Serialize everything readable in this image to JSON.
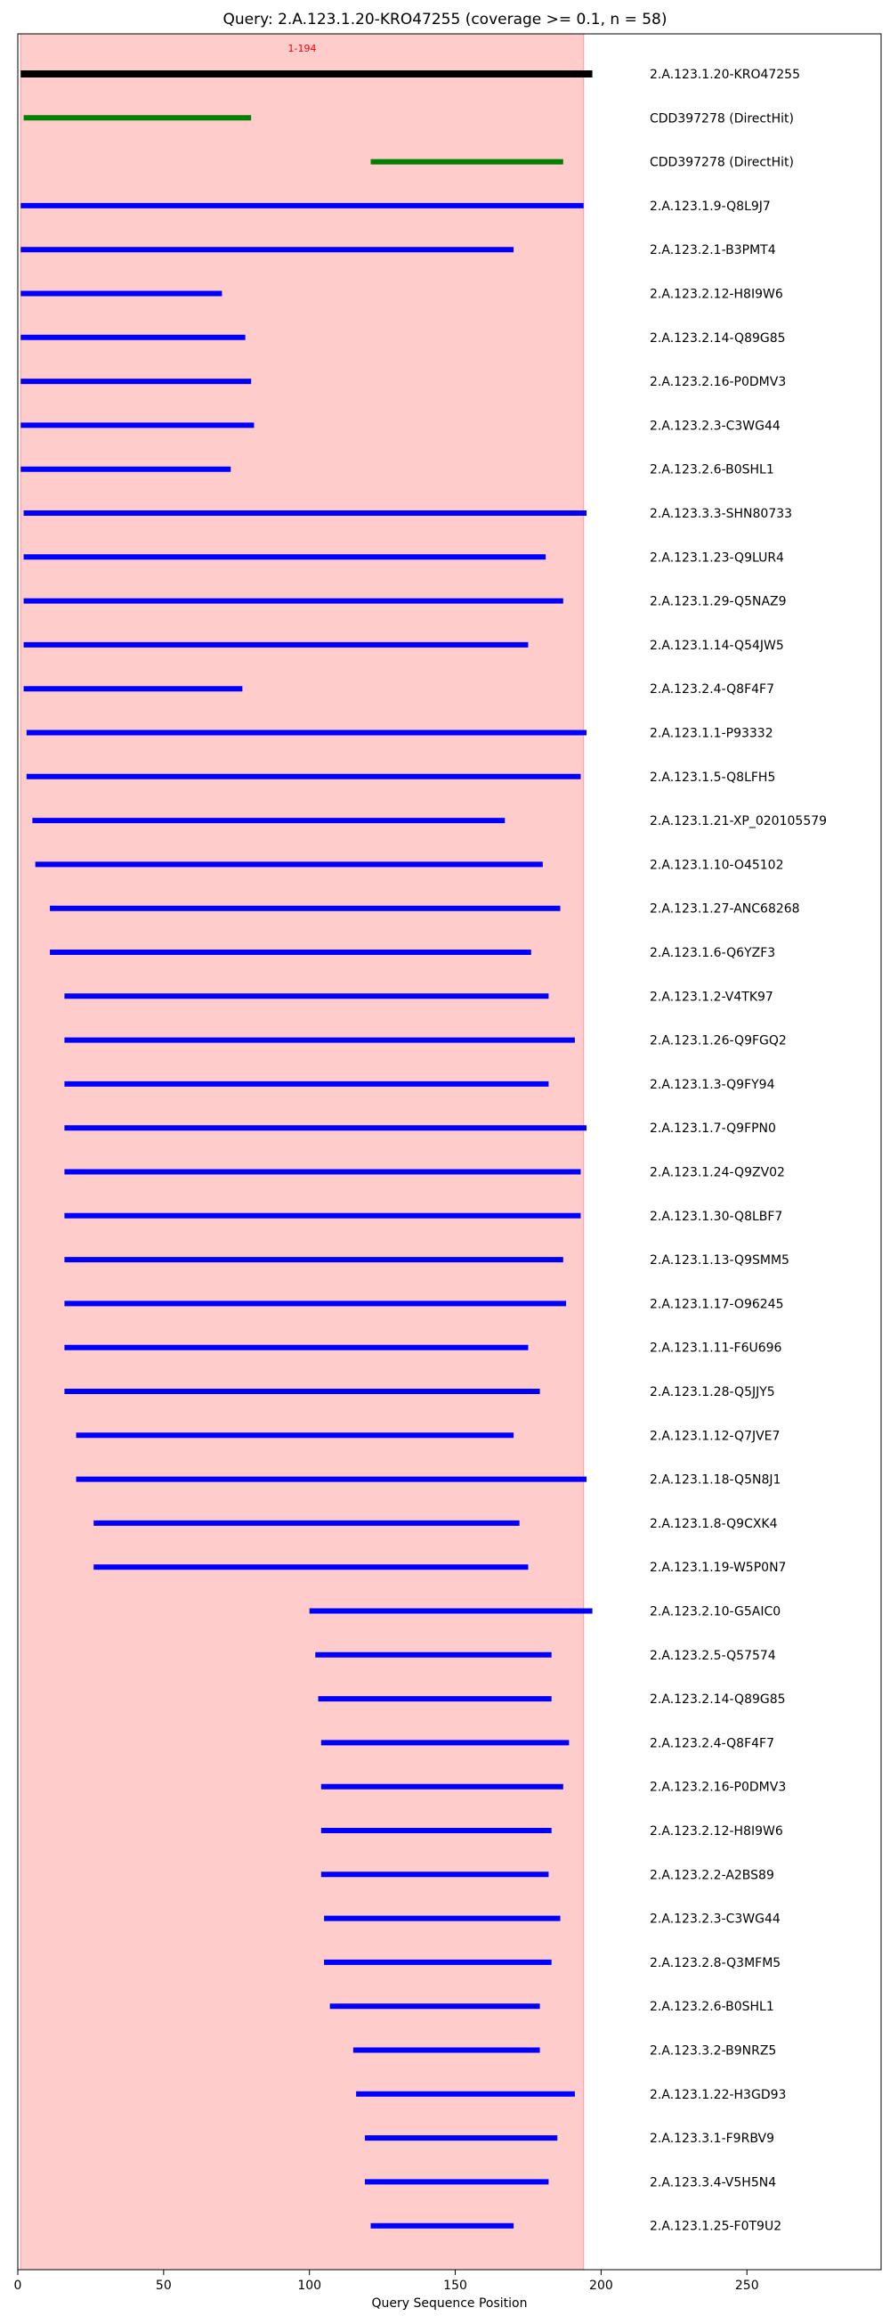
{
  "chart_data": {
    "type": "bar",
    "title": "Query: 2.A.123.1.20-KRO47255 (coverage >= 0.1, n = 58)",
    "xlabel": "Query Sequence Position",
    "xlim": [
      0,
      296
    ],
    "xticks": [
      0,
      50,
      100,
      150,
      200,
      250
    ],
    "highlight_region": {
      "start": 1,
      "end": 194,
      "label": "1-194",
      "color": "#ffcccc"
    },
    "bars": [
      {
        "label": "2.A.123.1.20-KRO47255",
        "start": 1,
        "end": 197,
        "color": "#000000"
      },
      {
        "label": "CDD397278 (DirectHit)",
        "start": 2,
        "end": 80,
        "color": "#008000"
      },
      {
        "label": "CDD397278 (DirectHit)",
        "start": 121,
        "end": 187,
        "color": "#008000"
      },
      {
        "label": "2.A.123.1.9-Q8L9J7",
        "start": 1,
        "end": 194,
        "color": "#0000ff"
      },
      {
        "label": "2.A.123.2.1-B3PMT4",
        "start": 1,
        "end": 170,
        "color": "#0000ff"
      },
      {
        "label": "2.A.123.2.12-H8I9W6",
        "start": 1,
        "end": 70,
        "color": "#0000ff"
      },
      {
        "label": "2.A.123.2.14-Q89G85",
        "start": 1,
        "end": 78,
        "color": "#0000ff"
      },
      {
        "label": "2.A.123.2.16-P0DMV3",
        "start": 1,
        "end": 80,
        "color": "#0000ff"
      },
      {
        "label": "2.A.123.2.3-C3WG44",
        "start": 1,
        "end": 81,
        "color": "#0000ff"
      },
      {
        "label": "2.A.123.2.6-B0SHL1",
        "start": 1,
        "end": 73,
        "color": "#0000ff"
      },
      {
        "label": "2.A.123.3.3-SHN80733",
        "start": 2,
        "end": 195,
        "color": "#0000ff"
      },
      {
        "label": "2.A.123.1.23-Q9LUR4",
        "start": 2,
        "end": 181,
        "color": "#0000ff"
      },
      {
        "label": "2.A.123.1.29-Q5NAZ9",
        "start": 2,
        "end": 187,
        "color": "#0000ff"
      },
      {
        "label": "2.A.123.1.14-Q54JW5",
        "start": 2,
        "end": 175,
        "color": "#0000ff"
      },
      {
        "label": "2.A.123.2.4-Q8F4F7",
        "start": 2,
        "end": 77,
        "color": "#0000ff"
      },
      {
        "label": "2.A.123.1.1-P93332",
        "start": 3,
        "end": 195,
        "color": "#0000ff"
      },
      {
        "label": "2.A.123.1.5-Q8LFH5",
        "start": 3,
        "end": 193,
        "color": "#0000ff"
      },
      {
        "label": "2.A.123.1.21-XP_020105579",
        "start": 5,
        "end": 167,
        "color": "#0000ff"
      },
      {
        "label": "2.A.123.1.10-O45102",
        "start": 6,
        "end": 180,
        "color": "#0000ff"
      },
      {
        "label": "2.A.123.1.27-ANC68268",
        "start": 11,
        "end": 186,
        "color": "#0000ff"
      },
      {
        "label": "2.A.123.1.6-Q6YZF3",
        "start": 11,
        "end": 176,
        "color": "#0000ff"
      },
      {
        "label": "2.A.123.1.2-V4TK97",
        "start": 16,
        "end": 182,
        "color": "#0000ff"
      },
      {
        "label": "2.A.123.1.26-Q9FGQ2",
        "start": 16,
        "end": 191,
        "color": "#0000ff"
      },
      {
        "label": "2.A.123.1.3-Q9FY94",
        "start": 16,
        "end": 182,
        "color": "#0000ff"
      },
      {
        "label": "2.A.123.1.7-Q9FPN0",
        "start": 16,
        "end": 195,
        "color": "#0000ff"
      },
      {
        "label": "2.A.123.1.24-Q9ZV02",
        "start": 16,
        "end": 193,
        "color": "#0000ff"
      },
      {
        "label": "2.A.123.1.30-Q8LBF7",
        "start": 16,
        "end": 193,
        "color": "#0000ff"
      },
      {
        "label": "2.A.123.1.13-Q9SMM5",
        "start": 16,
        "end": 187,
        "color": "#0000ff"
      },
      {
        "label": "2.A.123.1.17-O96245",
        "start": 16,
        "end": 188,
        "color": "#0000ff"
      },
      {
        "label": "2.A.123.1.11-F6U696",
        "start": 16,
        "end": 175,
        "color": "#0000ff"
      },
      {
        "label": "2.A.123.1.28-Q5JJY5",
        "start": 16,
        "end": 179,
        "color": "#0000ff"
      },
      {
        "label": "2.A.123.1.12-Q7JVE7",
        "start": 20,
        "end": 170,
        "color": "#0000ff"
      },
      {
        "label": "2.A.123.1.18-Q5N8J1",
        "start": 20,
        "end": 195,
        "color": "#0000ff"
      },
      {
        "label": "2.A.123.1.8-Q9CXK4",
        "start": 26,
        "end": 172,
        "color": "#0000ff"
      },
      {
        "label": "2.A.123.1.19-W5P0N7",
        "start": 26,
        "end": 175,
        "color": "#0000ff"
      },
      {
        "label": "2.A.123.2.10-G5AIC0",
        "start": 100,
        "end": 197,
        "color": "#0000ff"
      },
      {
        "label": "2.A.123.2.5-Q57574",
        "start": 102,
        "end": 183,
        "color": "#0000ff"
      },
      {
        "label": "2.A.123.2.14-Q89G85",
        "start": 103,
        "end": 183,
        "color": "#0000ff"
      },
      {
        "label": "2.A.123.2.4-Q8F4F7",
        "start": 104,
        "end": 189,
        "color": "#0000ff"
      },
      {
        "label": "2.A.123.2.16-P0DMV3",
        "start": 104,
        "end": 187,
        "color": "#0000ff"
      },
      {
        "label": "2.A.123.2.12-H8I9W6",
        "start": 104,
        "end": 183,
        "color": "#0000ff"
      },
      {
        "label": "2.A.123.2.2-A2BS89",
        "start": 104,
        "end": 182,
        "color": "#0000ff"
      },
      {
        "label": "2.A.123.2.3-C3WG44",
        "start": 105,
        "end": 186,
        "color": "#0000ff"
      },
      {
        "label": "2.A.123.2.8-Q3MFM5",
        "start": 105,
        "end": 183,
        "color": "#0000ff"
      },
      {
        "label": "2.A.123.2.6-B0SHL1",
        "start": 107,
        "end": 179,
        "color": "#0000ff"
      },
      {
        "label": "2.A.123.3.2-B9NRZ5",
        "start": 115,
        "end": 179,
        "color": "#0000ff"
      },
      {
        "label": "2.A.123.1.22-H3GD93",
        "start": 116,
        "end": 191,
        "color": "#0000ff"
      },
      {
        "label": "2.A.123.3.1-F9RBV9",
        "start": 119,
        "end": 185,
        "color": "#0000ff"
      },
      {
        "label": "2.A.123.3.4-V5H5N4",
        "start": 119,
        "end": 182,
        "color": "#0000ff"
      },
      {
        "label": "2.A.123.1.25-F0T9U2",
        "start": 121,
        "end": 170,
        "color": "#0000ff"
      }
    ]
  }
}
